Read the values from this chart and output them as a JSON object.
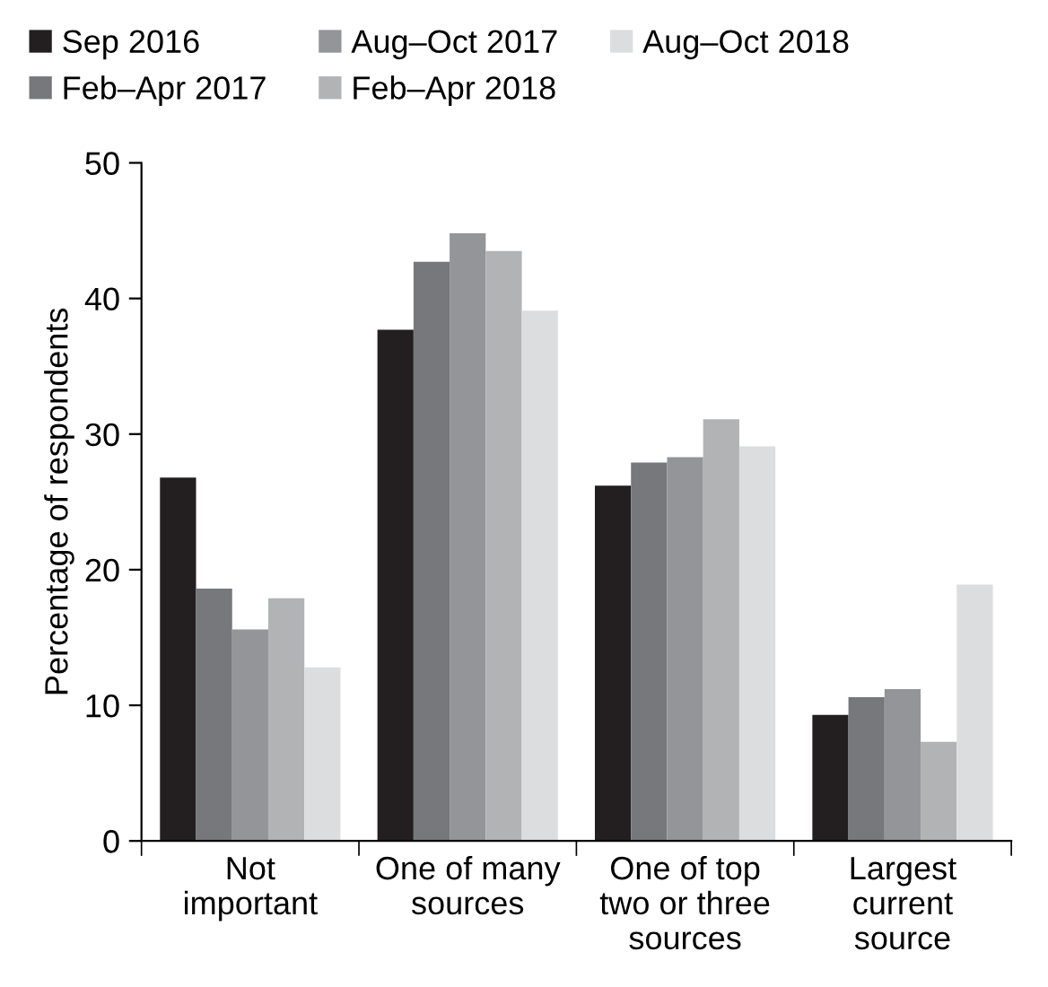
{
  "chart_data": {
    "type": "bar",
    "ylabel": "Percentage of respondents",
    "categories": [
      "Not\nimportant",
      "One of many\nsources",
      "One of top\ntwo or three\nsources",
      "Largest\ncurrent\nsource"
    ],
    "series": [
      {
        "name": "Sep 2016",
        "color": "#231f20",
        "values": [
          26.8,
          37.7,
          26.2,
          9.3
        ]
      },
      {
        "name": "Feb–Apr 2017",
        "color": "#77787b",
        "values": [
          18.6,
          42.7,
          27.9,
          10.6
        ]
      },
      {
        "name": "Aug–Oct 2017",
        "color": "#939598",
        "values": [
          15.6,
          44.8,
          28.3,
          11.2
        ]
      },
      {
        "name": "Feb–Apr 2018",
        "color": "#b1b3b5",
        "values": [
          17.9,
          43.5,
          31.1,
          7.3
        ]
      },
      {
        "name": "Aug–Oct 2018",
        "color": "#dcddde",
        "values": [
          12.8,
          39.1,
          29.1,
          18.9
        ]
      }
    ],
    "ylim": [
      0,
      50
    ],
    "yticks": [
      0,
      10,
      20,
      30,
      40,
      50
    ],
    "grid": false,
    "legend": "top"
  }
}
